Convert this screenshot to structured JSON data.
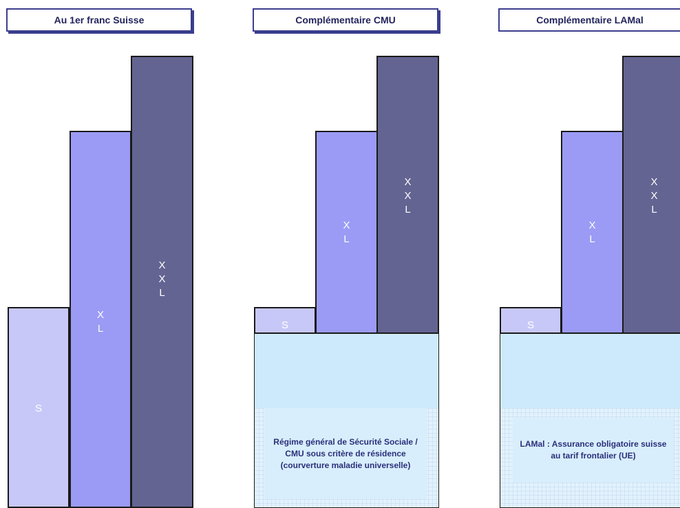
{
  "panels": [
    {
      "title": "Au 1er franc Suisse",
      "bars": [
        {
          "label": [
            "S"
          ]
        },
        {
          "label": [
            "X",
            "L"
          ]
        },
        {
          "label": [
            "X",
            "X",
            "L"
          ]
        }
      ]
    },
    {
      "title": "Complémentaire CMU",
      "bars": [
        {
          "label": [
            "S"
          ]
        },
        {
          "label": [
            "X",
            "L"
          ]
        },
        {
          "label": [
            "X",
            "X",
            "L"
          ]
        }
      ],
      "base_lines": [
        "Régime général de Sécurité Sociale /",
        "CMU sous critère de résidence",
        "(courverture maladie universelle)"
      ]
    },
    {
      "title": "Complémentaire LAMal",
      "bars": [
        {
          "label": [
            "S"
          ]
        },
        {
          "label": [
            "X",
            "L"
          ]
        },
        {
          "label": [
            "X",
            "X",
            "L"
          ]
        }
      ],
      "base_lines": [
        "LAMal : Assurance obligatoire suisse",
        "au tarif frontalier (UE)"
      ]
    }
  ],
  "colors": {
    "header_border": "#3b3d8e",
    "bar_s": "#c8c8f8",
    "bar_xl": "#9b9bf5",
    "bar_xxl": "#646492",
    "base_fill": "#cdeafc",
    "base_text": "#2a2f7a"
  }
}
